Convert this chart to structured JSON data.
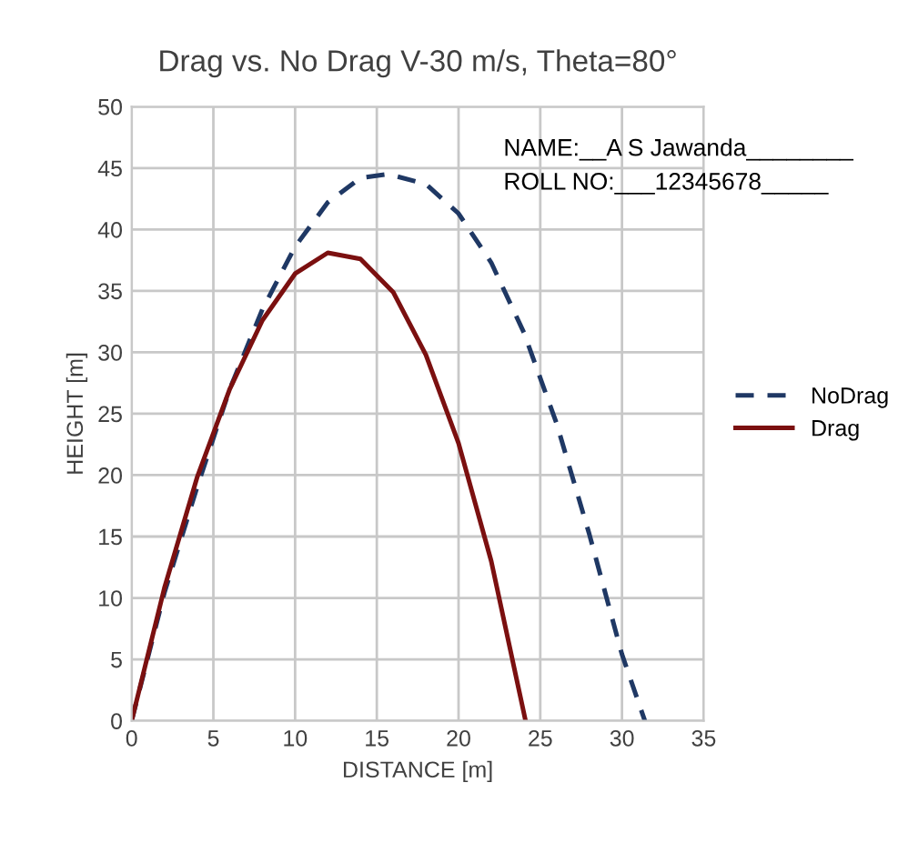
{
  "chart_data": {
    "type": "line",
    "title": "Drag vs. No Drag V-30 m/s, Theta=80°",
    "xlabel": "DISTANCE [m]",
    "ylabel": "HEIGHT [m]",
    "annotations": [
      "NAME:__A S Jawanda________",
      "ROLL NO:___12345678_____"
    ],
    "series": [
      {
        "name": "NoDrag",
        "color": "#1f3864",
        "line_style": "dashed",
        "x": [
          0,
          2,
          4,
          6,
          8,
          10,
          12,
          14,
          15.7,
          18,
          20,
          22,
          24,
          26,
          28,
          30,
          31.4
        ],
        "values": [
          0,
          10.4,
          19.0,
          27.0,
          33.5,
          38.6,
          42.2,
          44.2,
          44.5,
          43.7,
          41.3,
          37.3,
          31.6,
          24.2,
          15.2,
          5.4,
          0
        ]
      },
      {
        "name": "Drag",
        "color": "#7b1010",
        "line_style": "solid",
        "x": [
          0,
          2,
          4,
          6,
          8,
          10,
          12,
          14,
          16,
          18,
          20,
          22,
          24.1
        ],
        "values": [
          0,
          10.8,
          19.8,
          27.0,
          32.6,
          36.4,
          38.1,
          37.6,
          34.9,
          29.8,
          22.6,
          13.0,
          0
        ]
      }
    ],
    "xlim": [
      0,
      35
    ],
    "ylim": [
      0,
      50
    ],
    "xticks": [
      0,
      5,
      10,
      15,
      20,
      25,
      30,
      35
    ],
    "yticks": [
      0,
      5,
      10,
      15,
      20,
      25,
      30,
      35,
      40,
      45,
      50
    ],
    "grid": true,
    "legend": "right",
    "marker": "none"
  }
}
